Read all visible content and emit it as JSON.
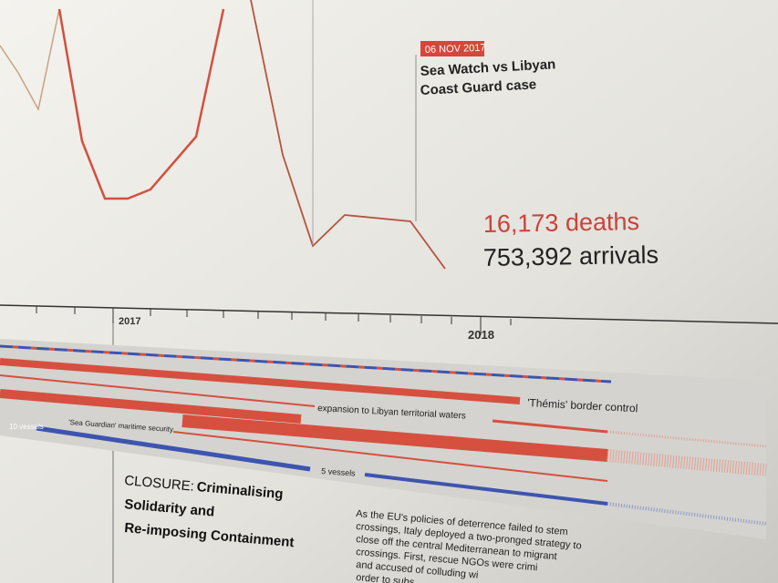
{
  "annotation": {
    "date": "06 NOV 2017",
    "title_lines": [
      "Sea Watch vs Libyan",
      "Coast Guard case"
    ]
  },
  "totals": {
    "deaths": "16,173 deaths",
    "arrivals": "753,392 arrivals"
  },
  "timeline": {
    "years": [
      "2017",
      "2018"
    ]
  },
  "bands": {
    "themis": "'Thémis' border control",
    "libya": "expansion to Libyan territorial waters",
    "sea_guardian": "'Sea Guardian' maritime security",
    "vessels_a": "10 vessels",
    "vessels_b": "5 vessels"
  },
  "section": {
    "prefix": "CLOSURE:",
    "title_lines": [
      "Criminalising",
      "Solidarity and",
      "Re-imposing Containment"
    ]
  },
  "paragraph": [
    "As the EU's policies of deterrence failed to stem",
    "crossings, Italy deployed a two-pronged strategy to",
    "close off the central Mediterranean to migrant",
    "crossings. First, rescue NGOs were crimi",
    "and accused of colluding wi",
    "order to subs"
  ]
}
